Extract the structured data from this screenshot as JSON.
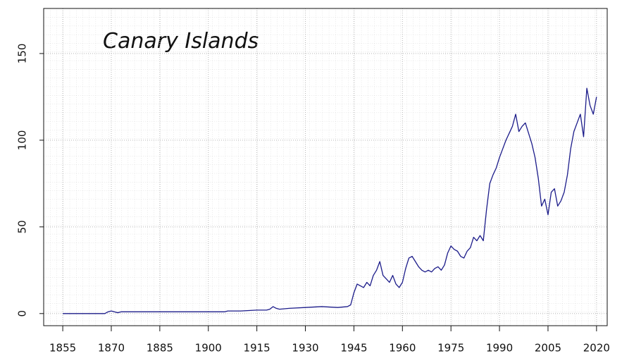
{
  "chart_data": {
    "type": "line",
    "title": "Canary Islands",
    "x": [
      1855,
      1868,
      1869,
      1870,
      1871,
      1872,
      1873,
      1880,
      1890,
      1900,
      1905,
      1906,
      1910,
      1915,
      1918,
      1919,
      1920,
      1921,
      1922,
      1925,
      1930,
      1935,
      1940,
      1943,
      1944,
      1945,
      1946,
      1947,
      1948,
      1949,
      1950,
      1951,
      1952,
      1953,
      1954,
      1955,
      1956,
      1957,
      1958,
      1959,
      1960,
      1961,
      1962,
      1963,
      1964,
      1965,
      1966,
      1967,
      1968,
      1969,
      1970,
      1971,
      1972,
      1973,
      1974,
      1975,
      1976,
      1977,
      1978,
      1979,
      1980,
      1981,
      1982,
      1983,
      1984,
      1985,
      1986,
      1987,
      1988,
      1989,
      1990,
      1991,
      1992,
      1993,
      1994,
      1995,
      1996,
      1997,
      1998,
      1999,
      2000,
      2001,
      2002,
      2003,
      2004,
      2005,
      2006,
      2007,
      2008,
      2009,
      2010,
      2011,
      2012,
      2013,
      2014,
      2015,
      2016,
      2017,
      2018,
      2019,
      2020
    ],
    "series": [
      {
        "color": "#1c1c8a",
        "values": [
          0,
          0,
          1,
          1.5,
          1,
          0.5,
          1,
          1,
          1,
          1,
          1,
          1.5,
          1.5,
          2,
          2,
          2.5,
          4,
          3,
          2.5,
          3,
          3.5,
          4,
          3.5,
          4,
          5,
          12,
          17,
          16,
          15,
          18,
          16,
          22,
          25,
          30,
          22,
          20,
          18,
          22,
          17,
          15,
          18,
          26,
          32,
          33,
          30,
          27,
          25,
          24,
          25,
          24,
          26,
          27,
          25,
          28,
          35,
          39,
          37,
          36,
          33,
          32,
          36,
          38,
          44,
          42,
          45,
          42,
          60,
          75,
          80,
          84,
          90,
          95,
          100,
          104,
          108,
          115,
          105,
          108,
          110,
          104,
          98,
          90,
          78,
          62,
          66,
          57,
          70,
          72,
          62,
          65,
          70,
          80,
          95,
          105,
          110,
          115,
          102,
          130,
          120,
          115,
          125
        ]
      }
    ],
    "xlim": [
      1849.1,
      2023.3
    ],
    "ylim": [
      -7,
      176
    ],
    "xticks": [
      1855,
      1870,
      1885,
      1900,
      1915,
      1930,
      1945,
      1960,
      1975,
      1990,
      2005,
      2020
    ],
    "yticks": [
      0,
      50,
      100,
      150
    ],
    "grid": true
  }
}
